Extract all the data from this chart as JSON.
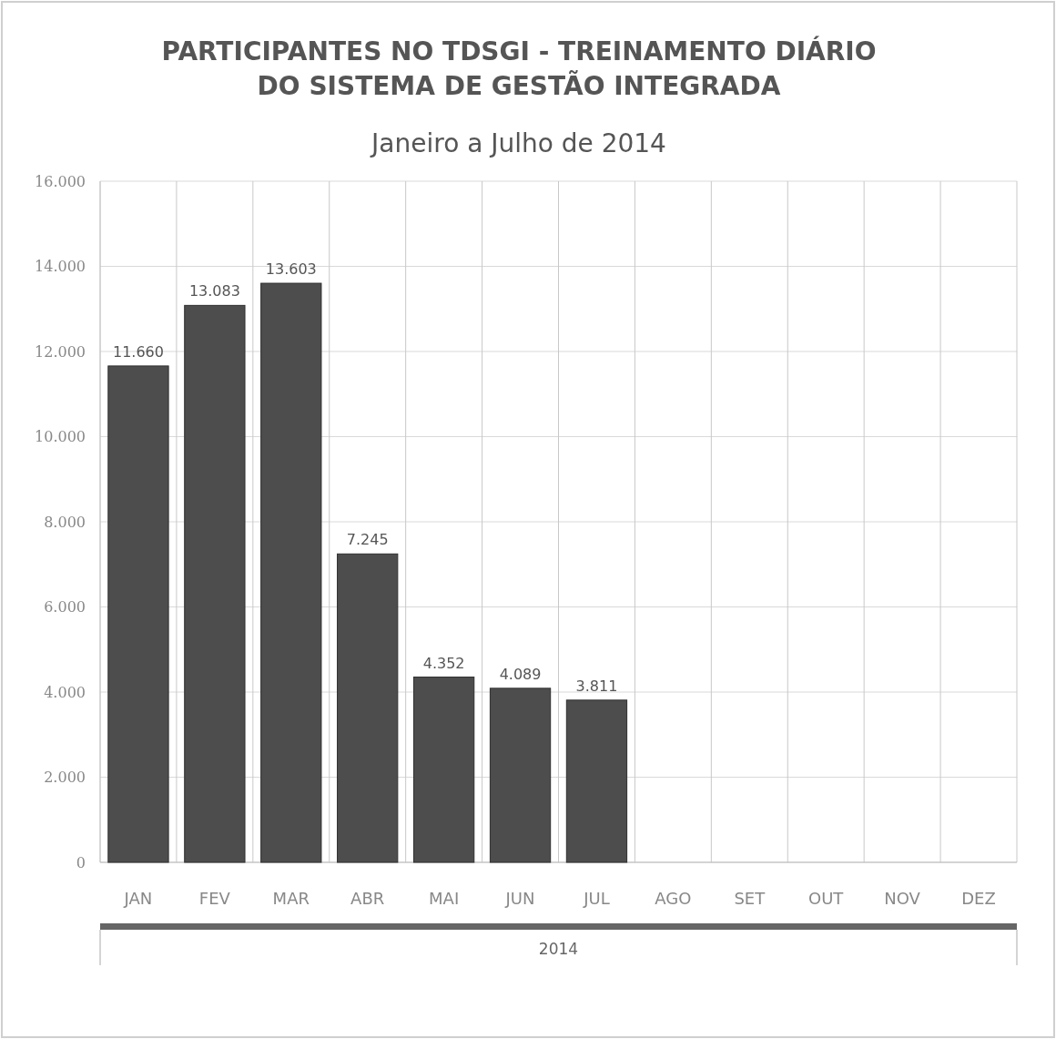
{
  "chart_data": {
    "type": "bar",
    "title": "PARTICIPANTES NO TDSGI - TREINAMENTO DIÁRIO\nDO SISTEMA DE GESTÃO INTEGRADA",
    "subtitle": "Janeiro a Julho de 2014",
    "xlabel": "2014",
    "categories": [
      "JAN",
      "FEV",
      "MAR",
      "ABR",
      "MAI",
      "JUN",
      "JUL",
      "AGO",
      "SET",
      "OUT",
      "NOV",
      "DEZ"
    ],
    "values": [
      11660,
      13083,
      13603,
      7245,
      4352,
      4089,
      3811,
      null,
      null,
      null,
      null,
      null
    ],
    "value_labels": [
      "11.660",
      "13.083",
      "13.603",
      "7.245",
      "4.352",
      "4.089",
      "3.811",
      null,
      null,
      null,
      null,
      null
    ],
    "color": "#4d4d4d",
    "ylim": [
      0,
      16000
    ],
    "yticks": [
      0,
      {
        "value": 2000,
        "label": "2.000"
      },
      {
        "value": 4000,
        "label": "4.000"
      },
      {
        "value": 6000,
        "label": "6.000"
      },
      {
        "value": 8000,
        "label": "8.000"
      },
      {
        "value": 10000,
        "label": "10.000"
      },
      {
        "value": 12000,
        "label": "12.000"
      },
      {
        "value": 14000,
        "label": "14.000"
      },
      {
        "value": 16000,
        "label": "16.000"
      }
    ],
    "grid": true
  }
}
